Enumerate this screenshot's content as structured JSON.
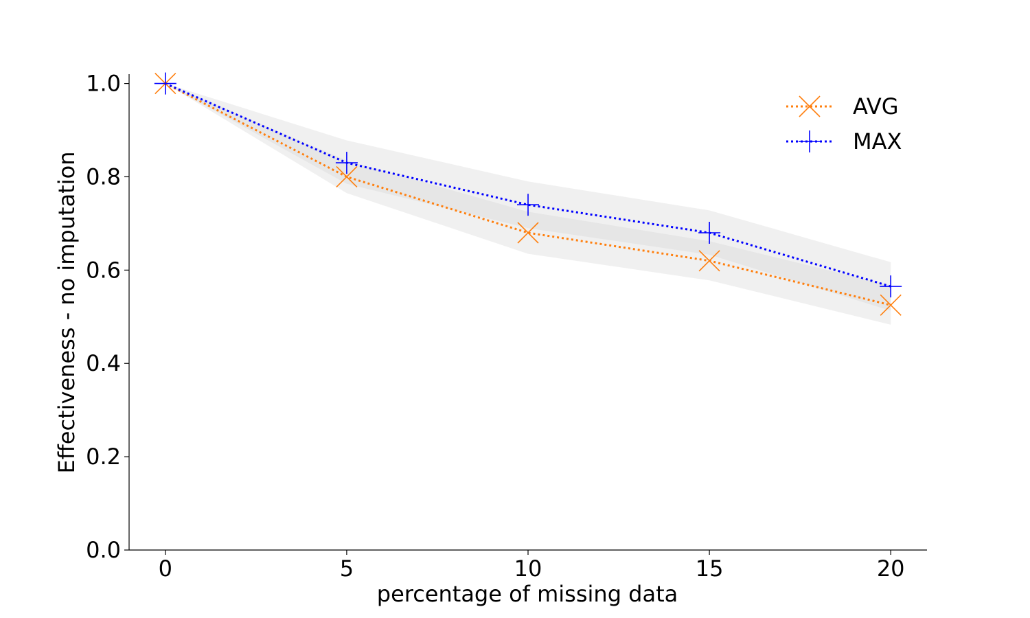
{
  "chart_data": {
    "type": "line",
    "x": [
      0,
      5,
      10,
      15,
      20
    ],
    "xlabel": "percentage of missing data",
    "ylabel": "Effectiveness - no imputation",
    "xlim": [
      -1,
      21
    ],
    "ylim": [
      0.0,
      1.02
    ],
    "xticks": [
      0,
      5,
      10,
      15,
      20
    ],
    "xtick_labels": [
      "0",
      "5",
      "10",
      "15",
      "20"
    ],
    "yticks": [
      0.0,
      0.2,
      0.4,
      0.6,
      0.8,
      1.0
    ],
    "ytick_labels": [
      "0.0",
      "0.2",
      "0.4",
      "0.6",
      "0.8",
      "1.0"
    ],
    "grid": false,
    "legend_position": "top-right",
    "series": [
      {
        "name": "AVG",
        "values": [
          1.0,
          0.8,
          0.68,
          0.62,
          0.525
        ],
        "lower": [
          1.0,
          0.765,
          0.635,
          0.578,
          0.483
        ],
        "upper": [
          1.0,
          0.835,
          0.725,
          0.662,
          0.567
        ],
        "color": "#ff7f0e",
        "marker": "x-icon",
        "linestyle": "dotted"
      },
      {
        "name": "MAX",
        "values": [
          1.0,
          0.83,
          0.74,
          0.68,
          0.565
        ],
        "lower": [
          1.0,
          0.785,
          0.69,
          0.633,
          0.513
        ],
        "upper": [
          1.0,
          0.878,
          0.79,
          0.728,
          0.617
        ],
        "color": "#0000ff",
        "marker": "plus-icon",
        "linestyle": "dotted"
      }
    ],
    "band_color": "#d3d3d3"
  }
}
